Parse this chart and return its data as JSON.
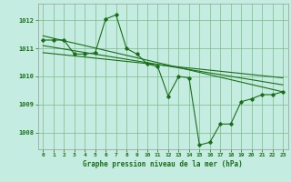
{
  "bg_color": "#c4ece0",
  "grid_color": "#7dba8a",
  "line_color": "#1a6e1a",
  "title": "Graphe pression niveau de la mer (hPa)",
  "xlim": [
    -0.5,
    23.5
  ],
  "ylim": [
    1007.4,
    1012.6
  ],
  "yticks": [
    1008,
    1009,
    1010,
    1011,
    1012
  ],
  "xticks": [
    0,
    1,
    2,
    3,
    4,
    5,
    6,
    7,
    8,
    9,
    10,
    11,
    12,
    13,
    14,
    15,
    16,
    17,
    18,
    19,
    20,
    21,
    22,
    23
  ],
  "series1_x": [
    0,
    1,
    2,
    3,
    4,
    5,
    6,
    7,
    8,
    9,
    10,
    11,
    12,
    13,
    14,
    15,
    16,
    17,
    18,
    19,
    20,
    21,
    22,
    23
  ],
  "series1_y": [
    1011.3,
    1011.3,
    1011.3,
    1010.8,
    1010.8,
    1010.85,
    1012.05,
    1012.2,
    1011.0,
    1010.8,
    1010.45,
    1010.35,
    1009.3,
    1010.0,
    1009.95,
    1007.55,
    1007.65,
    1008.3,
    1008.3,
    1009.1,
    1009.2,
    1009.35,
    1009.35,
    1009.45
  ],
  "trend1_x": [
    0,
    23
  ],
  "trend1_y": [
    1011.45,
    1009.45
  ],
  "trend2_x": [
    0,
    23
  ],
  "trend2_y": [
    1011.1,
    1009.7
  ],
  "trend3_x": [
    0,
    23
  ],
  "trend3_y": [
    1010.85,
    1009.95
  ]
}
